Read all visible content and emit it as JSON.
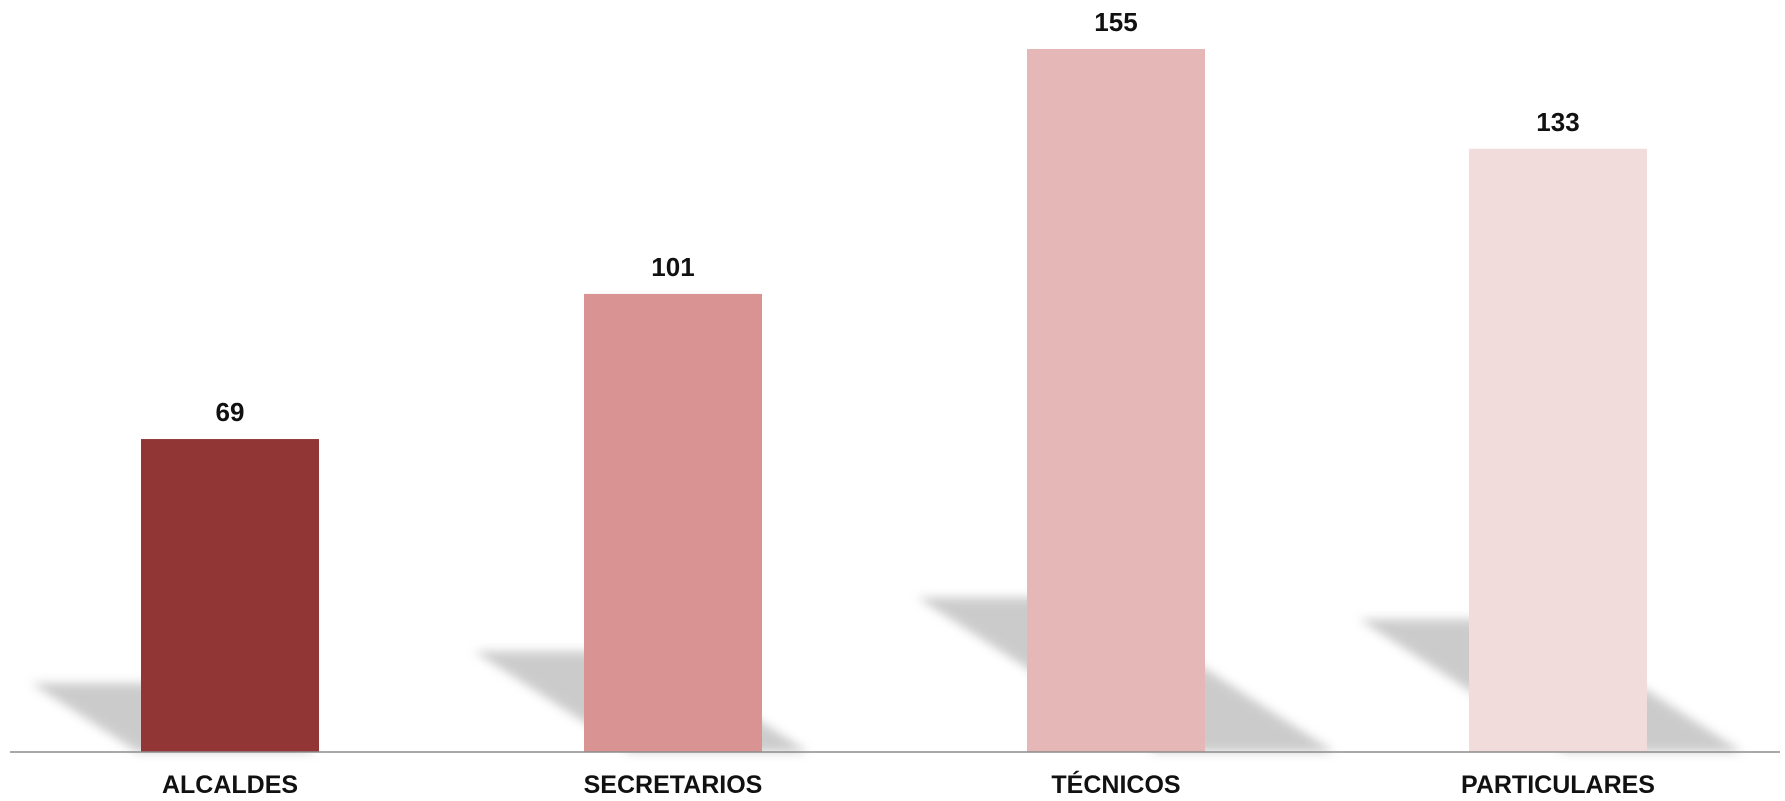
{
  "chart_data": {
    "type": "bar",
    "categories": [
      "ALCALDES",
      "SECRETARIOS",
      "TÉCNICOS",
      "PARTICULARES"
    ],
    "values": [
      69,
      101,
      155,
      133
    ],
    "colors": [
      "#913535",
      "#d99392",
      "#e6b7b7",
      "#f1dbdb"
    ],
    "title": "",
    "xlabel": "",
    "ylabel": "",
    "ylim": [
      0,
      155
    ],
    "grid": false,
    "legend": "none",
    "data_labels": true
  }
}
